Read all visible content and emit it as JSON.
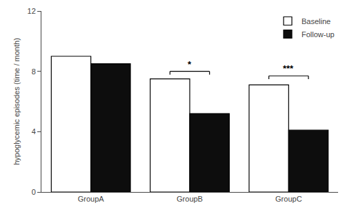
{
  "chart_data": {
    "type": "bar",
    "categories": [
      "GroupA",
      "GroupB",
      "GroupC"
    ],
    "series": [
      {
        "name": "Baseline",
        "color": "#ffffff",
        "values": [
          9.0,
          7.5,
          7.1
        ]
      },
      {
        "name": "Follow-up",
        "color": "#0d0d0d",
        "values": [
          8.5,
          5.2,
          4.1
        ]
      }
    ],
    "ylabel": "hypoglycemic episodes (time / month)",
    "ylim": [
      0,
      12
    ],
    "yticks": [
      0,
      4,
      8,
      12
    ],
    "grid": false,
    "legend": "upper right",
    "annotations": [
      {
        "category": "GroupB",
        "y": 8.0,
        "text": "*"
      },
      {
        "category": "GroupC",
        "y": 7.7,
        "text": "***"
      }
    ]
  }
}
